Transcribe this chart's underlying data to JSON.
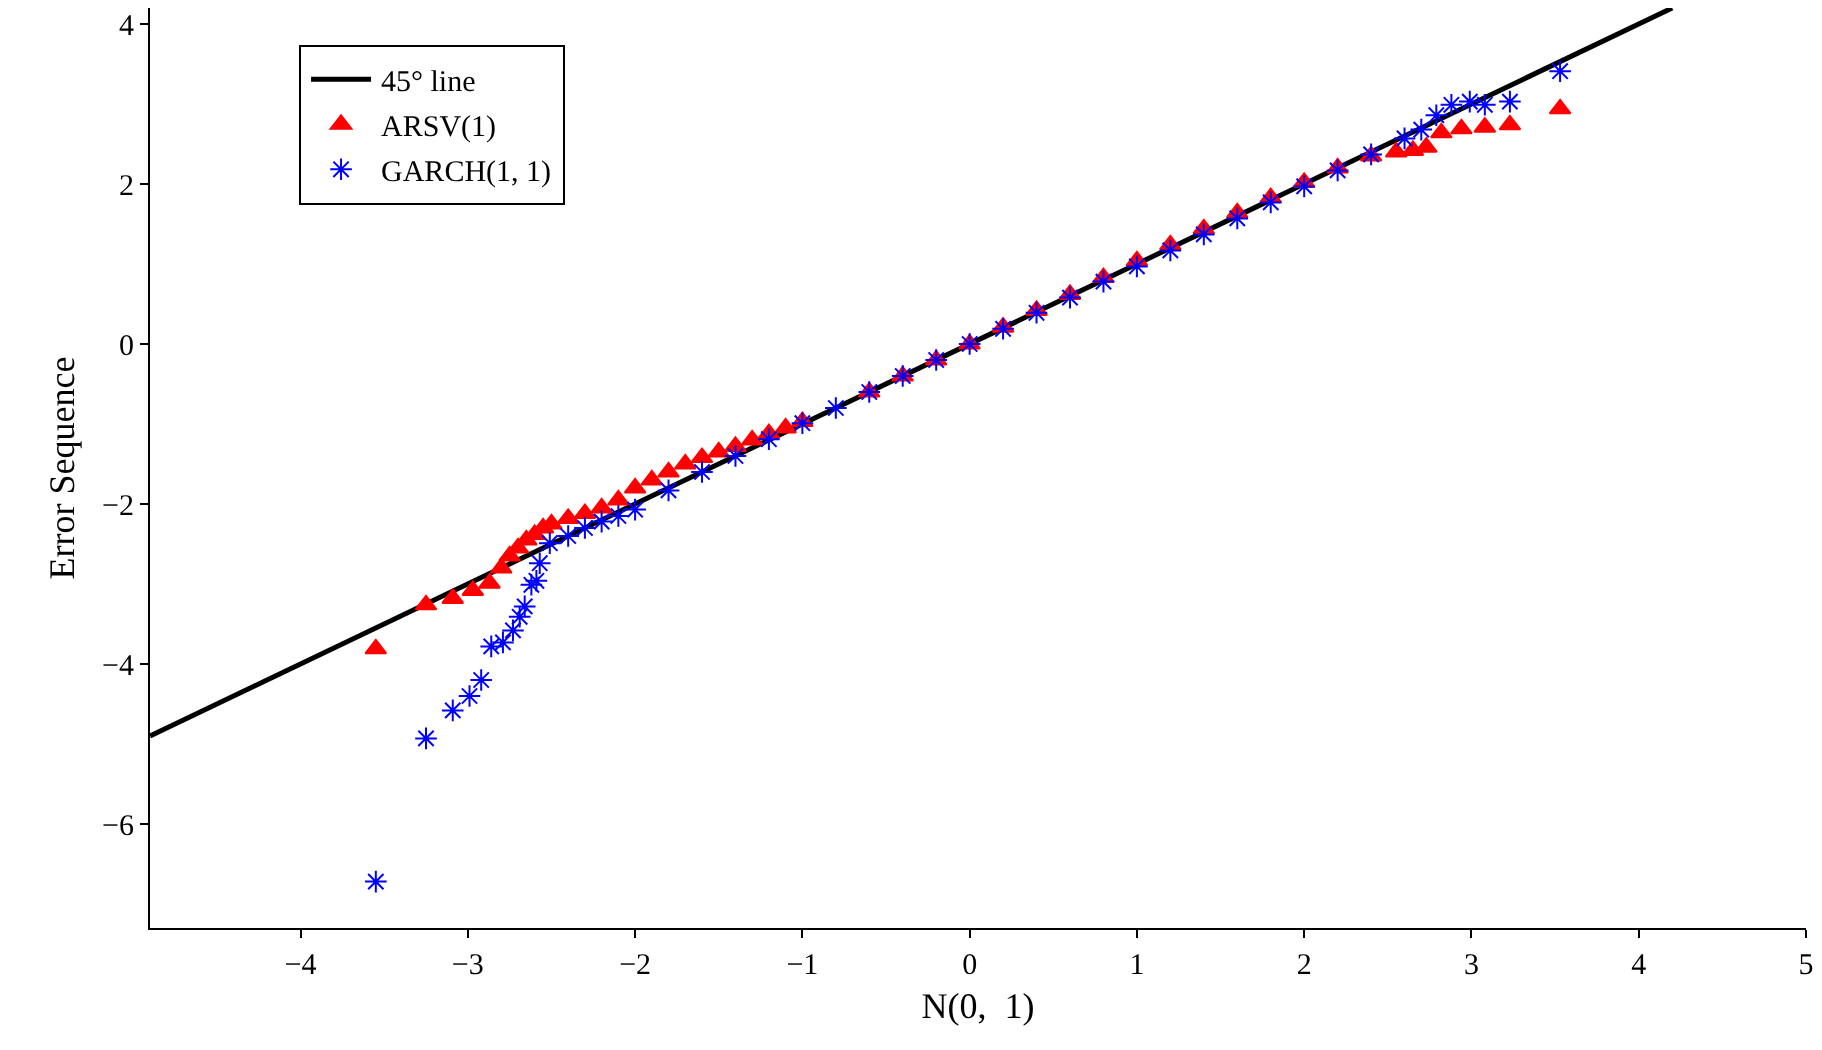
{
  "chart_data": {
    "type": "scatter",
    "xlabel": "N(0,  1)",
    "ylabel": "Error Sequence",
    "xlim": [
      -4.9,
      5
    ],
    "xticks": [
      {
        "value": -4,
        "label": "−4"
      },
      {
        "value": -3,
        "label": "−3"
      },
      {
        "value": -2,
        "label": "−2"
      },
      {
        "value": -1,
        "label": "−1"
      },
      0,
      1,
      2,
      3,
      4,
      5
    ],
    "ylim": [
      -7.3,
      4.2
    ],
    "yticks": [
      {
        "value": -6,
        "label": "−6"
      },
      {
        "value": -4,
        "label": "−4"
      },
      {
        "value": -2,
        "label": "−2"
      },
      0,
      2,
      4
    ],
    "grid": false,
    "legend": "top left",
    "series": [
      {
        "name": "45° line",
        "type": "line",
        "color": "#000000",
        "marker": "none",
        "line_style": "solid",
        "x": [
          -4.9,
          4.2
        ],
        "values": [
          -4.9,
          4.2
        ]
      },
      {
        "name": "ARSV(1)",
        "color": "#ff0000",
        "marker": "triangle",
        "x": [
          -3.55,
          -3.25,
          -3.09,
          -2.97,
          -2.87,
          -2.8,
          -2.75,
          -2.7,
          -2.65,
          -2.6,
          -2.55,
          -2.5,
          -2.4,
          -2.3,
          -2.2,
          -2.1,
          -2.0,
          -1.9,
          -1.8,
          -1.7,
          -1.6,
          -1.5,
          -1.4,
          -1.3,
          -1.2,
          -1.1,
          -1.0,
          -0.8,
          -0.6,
          -0.4,
          -0.2,
          0,
          0.2,
          0.4,
          0.6,
          0.8,
          1.0,
          1.2,
          1.4,
          1.6,
          1.8,
          2.0,
          2.2,
          2.4,
          2.55,
          2.65,
          2.73,
          2.82,
          2.94,
          3.08,
          3.23,
          3.53
        ],
        "values": [
          -3.81,
          -3.26,
          -3.18,
          -3.08,
          -2.99,
          -2.8,
          -2.65,
          -2.55,
          -2.45,
          -2.38,
          -2.3,
          -2.25,
          -2.18,
          -2.12,
          -2.05,
          -1.95,
          -1.8,
          -1.7,
          -1.6,
          -1.5,
          -1.42,
          -1.35,
          -1.28,
          -1.2,
          -1.12,
          -1.05,
          -0.97,
          null,
          -0.6,
          -0.4,
          -0.2,
          0,
          0.21,
          0.42,
          0.62,
          0.83,
          1.04,
          1.24,
          1.44,
          1.64,
          1.83,
          2.02,
          2.2,
          2.35,
          2.4,
          2.42,
          2.46,
          2.64,
          2.69,
          2.71,
          2.74,
          2.94
        ]
      },
      {
        "name": "GARCH(1, 1)",
        "color": "#0000ff",
        "marker": "cross",
        "x": [
          -3.55,
          -3.25,
          -3.09,
          -2.99,
          -2.92,
          -2.86,
          -2.79,
          -2.73,
          -2.69,
          -2.66,
          -2.62,
          -2.59,
          -2.57,
          -2.51,
          -2.4,
          -2.3,
          -2.2,
          -2.1,
          -2.0,
          -1.8,
          -1.6,
          -1.4,
          -1.2,
          -1.0,
          -0.8,
          -0.6,
          -0.4,
          -0.2,
          0,
          0.2,
          0.4,
          0.6,
          0.8,
          1.0,
          1.2,
          1.4,
          1.6,
          1.8,
          2.0,
          2.2,
          2.4,
          2.6,
          2.7,
          2.79,
          2.88,
          2.99,
          3.08,
          3.23,
          3.53
        ],
        "values": [
          -6.72,
          -4.93,
          -4.58,
          -4.4,
          -4.2,
          -3.78,
          -3.73,
          -3.58,
          -3.41,
          -3.28,
          -3.01,
          -2.96,
          -2.74,
          -2.49,
          -2.4,
          -2.3,
          -2.22,
          -2.15,
          -2.07,
          -1.83,
          -1.6,
          -1.4,
          -1.19,
          -0.99,
          -0.8,
          -0.6,
          -0.4,
          -0.2,
          0,
          0.19,
          0.39,
          0.58,
          0.78,
          0.97,
          1.17,
          1.37,
          1.57,
          1.77,
          1.97,
          2.17,
          2.37,
          2.57,
          2.68,
          2.86,
          2.99,
          3.03,
          2.99,
          3.03,
          3.41
        ]
      }
    ]
  }
}
